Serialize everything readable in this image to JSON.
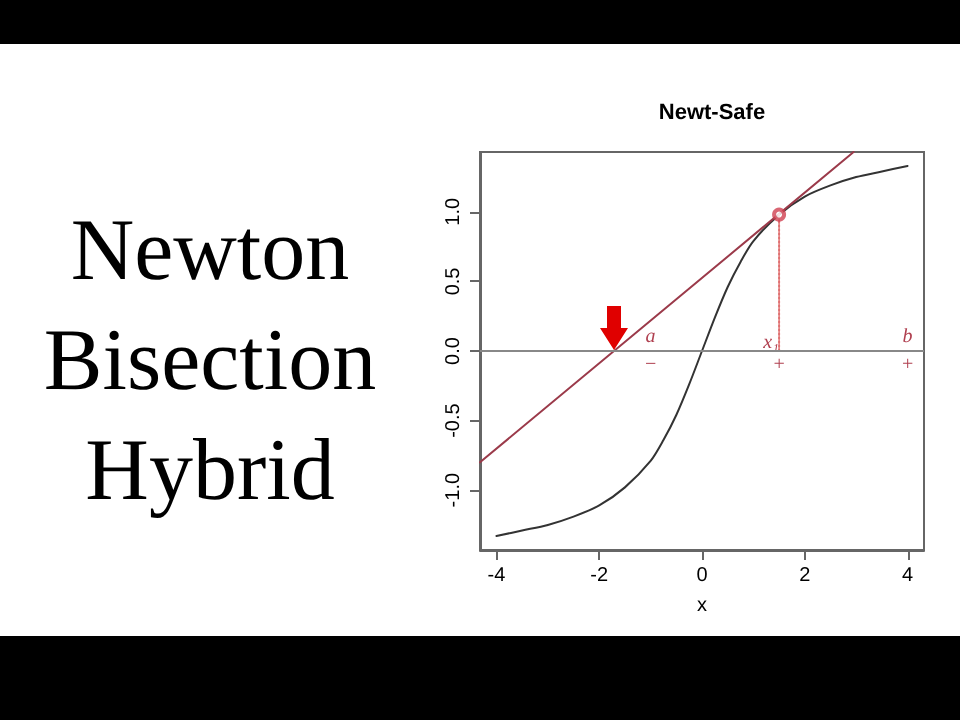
{
  "chart_data": {
    "type": "line",
    "title": "Newt-Safe",
    "xlabel": "x",
    "xlim": [
      -4.32,
      4.32
    ],
    "ylim": [
      -1.43,
      1.43
    ],
    "xticks": [
      -4,
      -2,
      0,
      2,
      4
    ],
    "yticks": [
      {
        "value": -1,
        "label": "-1.0"
      },
      {
        "value": -0.5,
        "label": "-0.5"
      },
      {
        "value": 0,
        "label": "0.0"
      },
      {
        "value": 0.5,
        "label": "0.5"
      },
      {
        "value": 1,
        "label": "1.0"
      }
    ],
    "grid": false,
    "series": [
      {
        "type": "line",
        "color": "#333333",
        "line_style": "solid",
        "marker": "none",
        "x": [
          -4,
          -3.5,
          -3,
          -2.5,
          -2,
          -1.5,
          -1,
          -0.75,
          -0.5,
          -0.25,
          0,
          0.25,
          0.5,
          0.75,
          1,
          1.5,
          2,
          2.5,
          3,
          3.5,
          4
        ],
        "values": [
          -1.33,
          -1.29,
          -1.25,
          -1.19,
          -1.11,
          -0.98,
          -0.79,
          -0.64,
          -0.46,
          -0.24,
          0,
          0.24,
          0.46,
          0.64,
          0.79,
          0.98,
          1.11,
          1.19,
          1.25,
          1.29,
          1.33
        ]
      },
      {
        "type": "line",
        "color": "#9b3a4a",
        "line_style": "solid",
        "marker": "none",
        "x": [
          -4.32,
          2.95
        ],
        "values": [
          -0.8,
          1.43
        ]
      },
      {
        "type": "line",
        "color": "#e07070",
        "line_style": "dotted",
        "marker": "none",
        "x": [
          1.5,
          1.5
        ],
        "values": [
          0,
          0.98
        ]
      },
      {
        "type": "scatter",
        "color": "#d04050",
        "marker": "circle",
        "x": [
          1.5
        ],
        "values": [
          0.98
        ]
      }
    ],
    "ref_lines": [
      {
        "axis": "y",
        "value": 0,
        "color": "#888888",
        "line_style": "solid"
      }
    ],
    "annotations": [
      "Newton",
      "Bisection",
      "Hybrid",
      "a",
      "b",
      "x₁",
      "−",
      "+",
      "+"
    ]
  }
}
